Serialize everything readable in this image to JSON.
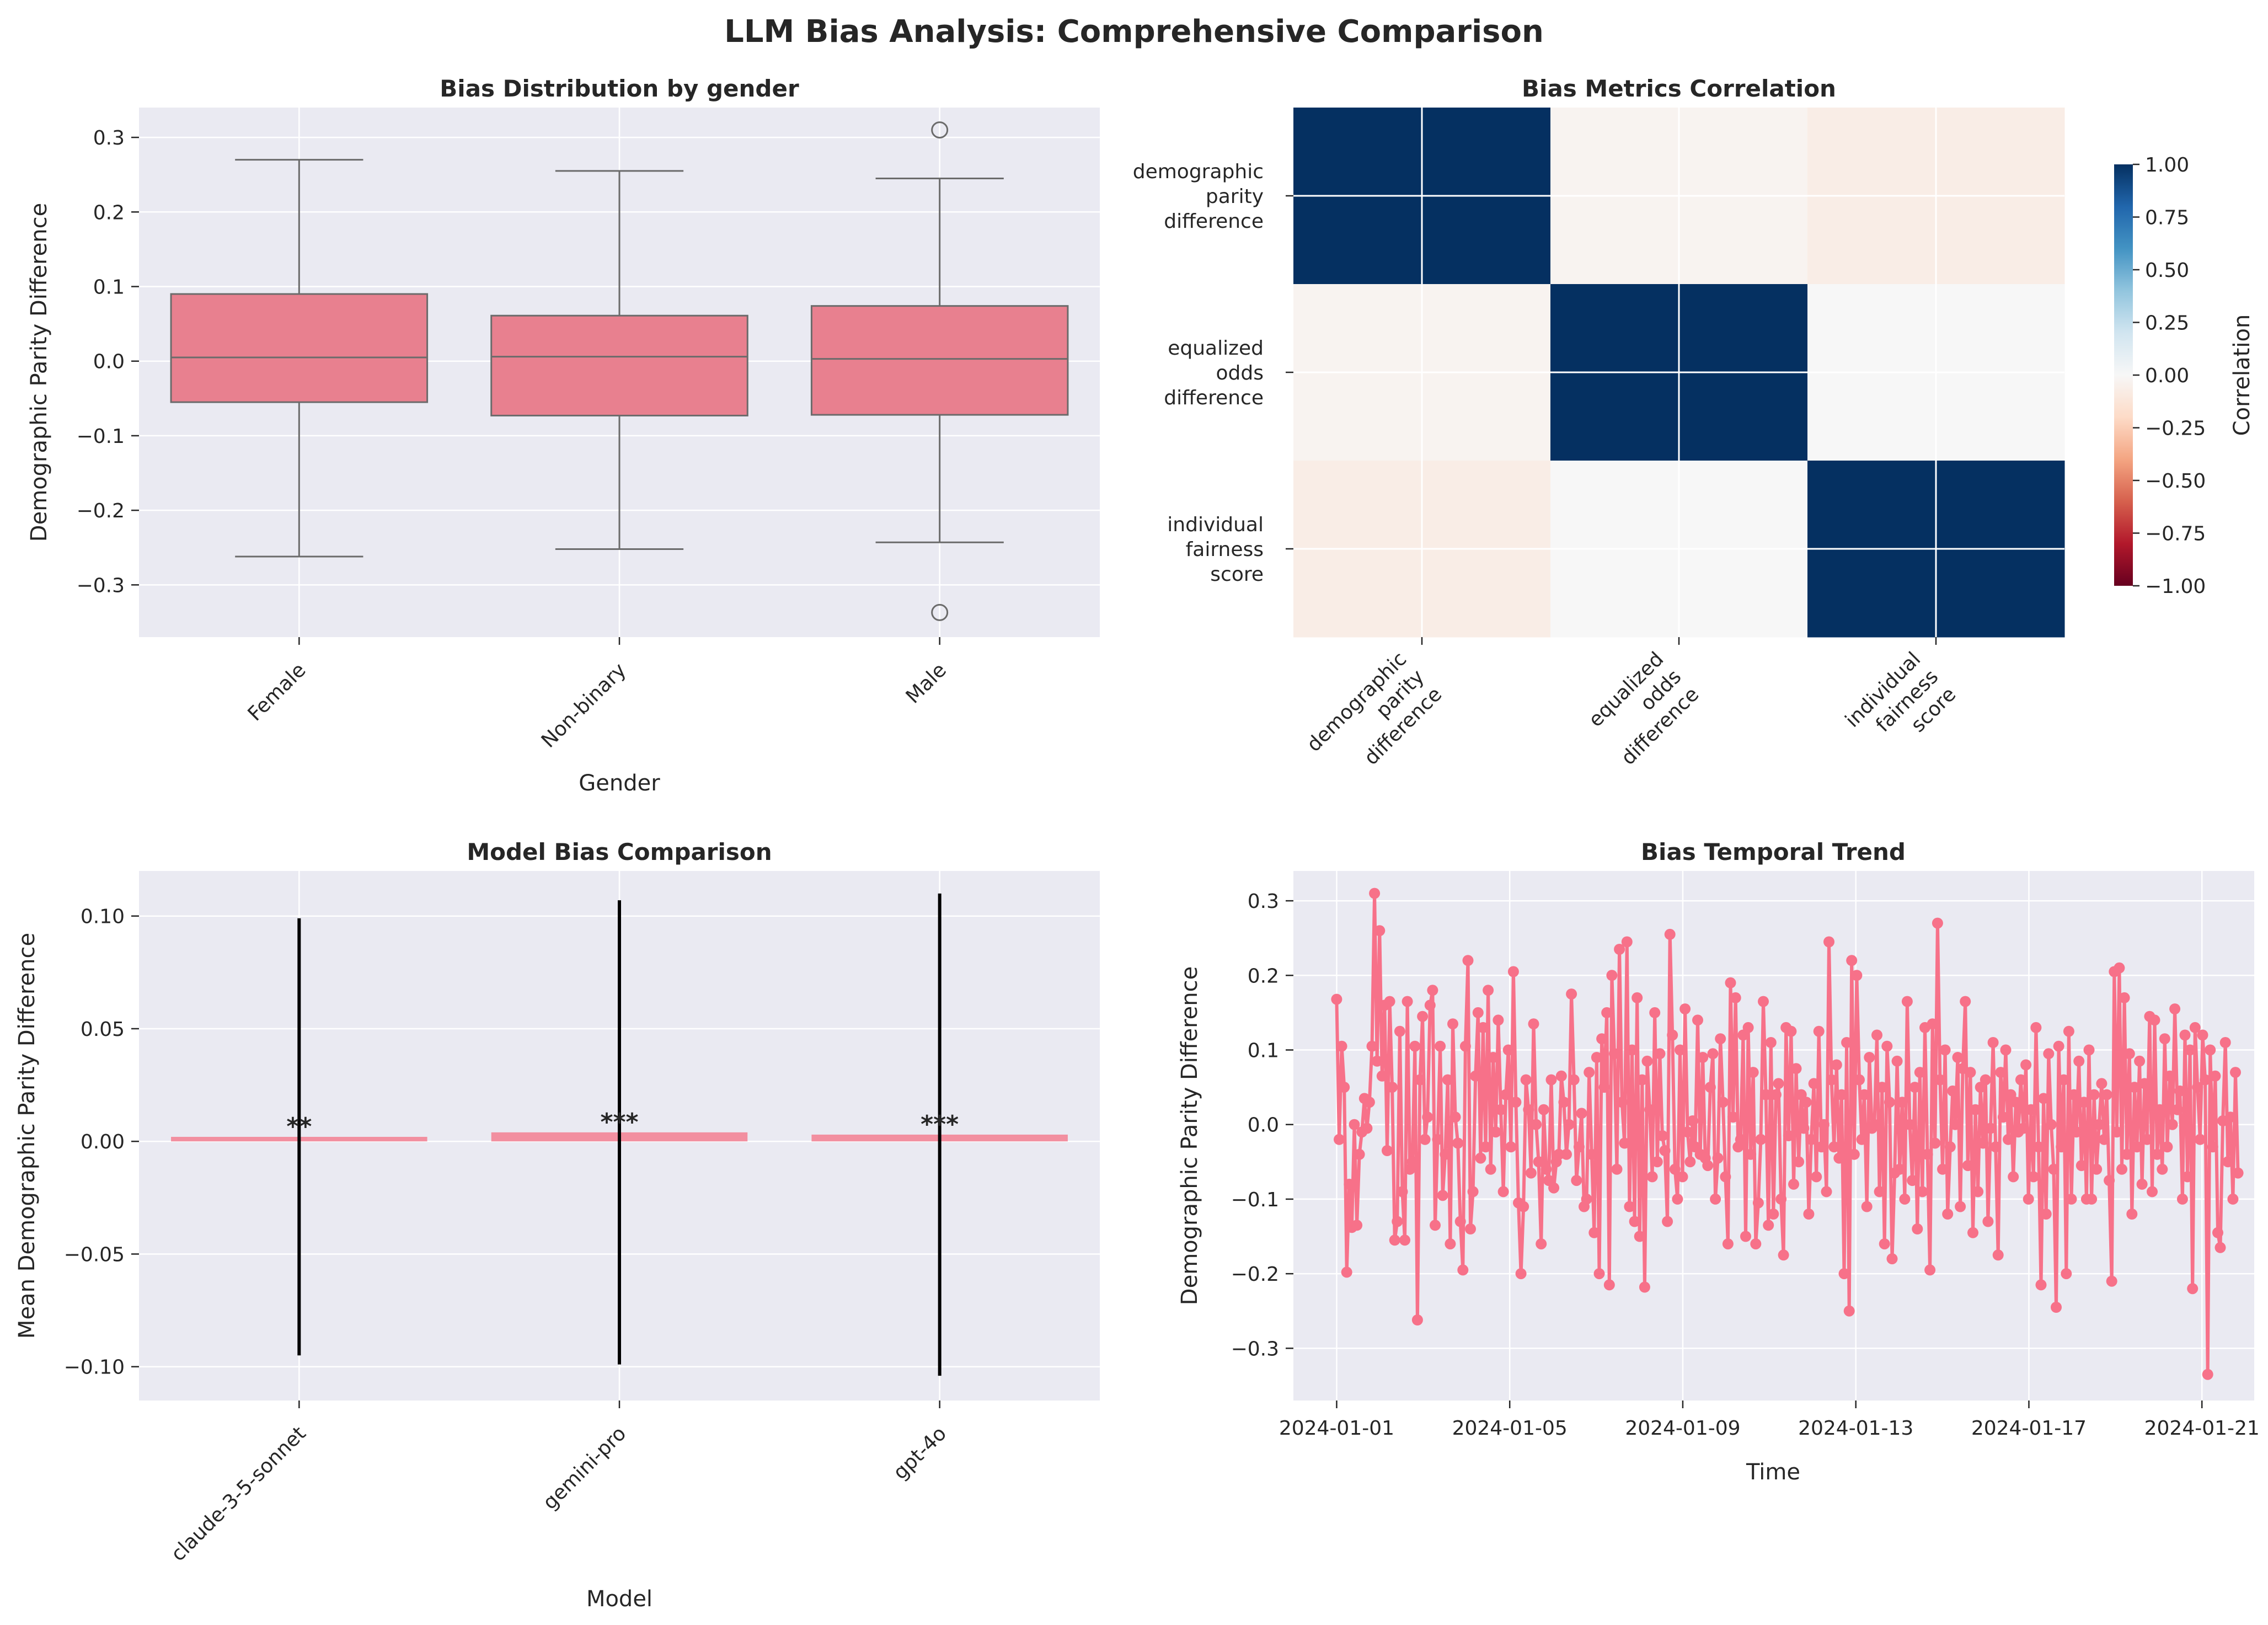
{
  "figure": {
    "title": "LLM Bias Analysis: Comprehensive Comparison"
  },
  "chart_data": [
    {
      "type": "box",
      "title": "Bias Distribution by gender",
      "xlabel": "Gender",
      "ylabel": "Demographic Parity Difference",
      "ylim": [
        -0.37,
        0.34
      ],
      "yticks": [
        -0.3,
        -0.2,
        -0.1,
        0.0,
        0.1,
        0.2,
        0.3
      ],
      "ytick_labels": [
        "−0.3",
        "−0.2",
        "−0.1",
        "0.0",
        "0.1",
        "0.2",
        "0.3"
      ],
      "categories": [
        "Female",
        "Non-binary",
        "Male"
      ],
      "boxes": [
        {
          "whislo": -0.262,
          "q1": -0.055,
          "med": 0.005,
          "q3": 0.09,
          "whishi": 0.27,
          "fliers": []
        },
        {
          "whislo": -0.252,
          "q1": -0.073,
          "med": 0.006,
          "q3": 0.061,
          "whishi": 0.255,
          "fliers": []
        },
        {
          "whislo": -0.243,
          "q1": -0.072,
          "med": 0.003,
          "q3": 0.074,
          "whishi": 0.245,
          "fliers": [
            0.31,
            -0.337
          ]
        }
      ],
      "color": "#e8808f",
      "grid": true
    },
    {
      "type": "heatmap",
      "title": "Bias Metrics Correlation",
      "row_labels": [
        [
          "demographic",
          "parity",
          "difference"
        ],
        [
          "equalized",
          "odds",
          "difference"
        ],
        [
          "individual",
          "fairness",
          "score"
        ]
      ],
      "col_labels": [
        [
          "demographic",
          "parity",
          "difference"
        ],
        [
          "equalized",
          "odds",
          "difference"
        ],
        [
          "individual",
          "fairness",
          "score"
        ]
      ],
      "values": [
        [
          1.0,
          -0.03,
          -0.07
        ],
        [
          -0.03,
          1.0,
          0.0
        ],
        [
          -0.07,
          0.0,
          1.0
        ]
      ],
      "colorbar_label": "Correlation",
      "vmin": -1.0,
      "vmax": 1.0,
      "colorbar_ticks": [
        1.0,
        0.75,
        0.5,
        0.25,
        0.0,
        -0.25,
        -0.5,
        -0.75,
        -1.0
      ],
      "colorbar_tick_labels": [
        "1.00",
        "0.75",
        "0.50",
        "0.25",
        "0.00",
        "−0.25",
        "−0.50",
        "−0.75",
        "−1.00"
      ],
      "colormap": [
        "#67001f",
        "#b2182b",
        "#d6604d",
        "#f4a582",
        "#fddbc7",
        "#f7f7f7",
        "#d1e5f0",
        "#92c5de",
        "#4393c3",
        "#2166ac",
        "#053061"
      ]
    },
    {
      "type": "bar",
      "title": "Model Bias Comparison",
      "xlabel": "Model",
      "ylabel": "Mean Demographic Parity Difference",
      "ylim": [
        -0.115,
        0.12
      ],
      "yticks": [
        -0.1,
        -0.05,
        0.0,
        0.05,
        0.1
      ],
      "ytick_labels": [
        "−0.10",
        "−0.05",
        "0.00",
        "0.05",
        "0.10"
      ],
      "categories": [
        "claude-3-5-sonnet",
        "gemini-pro",
        "gpt-4o"
      ],
      "values": [
        0.002,
        0.004,
        0.003
      ],
      "error": [
        0.097,
        0.103,
        0.107
      ],
      "significance": [
        "**",
        "***",
        "***"
      ],
      "color": "#f28fa0",
      "grid": true
    },
    {
      "type": "line",
      "title": "Bias Temporal Trend",
      "xlabel": "Time",
      "ylabel": "Demographic Parity Difference",
      "ylim": [
        -0.37,
        0.34
      ],
      "yticks": [
        -0.3,
        -0.2,
        -0.1,
        0.0,
        0.1,
        0.2,
        0.3
      ],
      "ytick_labels": [
        "−0.3",
        "−0.2",
        "−0.1",
        "0.0",
        "0.1",
        "0.2",
        "0.3"
      ],
      "xlim": [
        "2023-12-31T00:00",
        "2024-01-22T05:00"
      ],
      "xtick_labels": [
        "2024-01-01",
        "2024-01-05",
        "2024-01-09",
        "2024-01-13",
        "2024-01-17",
        "2024-01-21"
      ],
      "x_start": "2024-01-01T00:00",
      "x_end": "2024-01-21T20:00",
      "y": [
        0.168,
        -0.02,
        0.105,
        0.05,
        -0.198,
        -0.08,
        -0.138,
        0.0,
        -0.135,
        -0.04,
        -0.01,
        0.035,
        -0.005,
        0.03,
        0.105,
        0.31,
        0.085,
        0.26,
        0.065,
        0.16,
        -0.035,
        0.165,
        0.05,
        -0.155,
        -0.13,
        0.125,
        -0.09,
        -0.155,
        0.165,
        -0.06,
        -0.05,
        0.105,
        -0.262,
        0.06,
        0.145,
        -0.02,
        0.01,
        0.16,
        0.18,
        -0.135,
        -0.02,
        0.105,
        -0.095,
        -0.04,
        0.06,
        -0.16,
        0.135,
        0.01,
        -0.025,
        -0.13,
        -0.195,
        0.105,
        0.22,
        -0.14,
        -0.09,
        0.065,
        0.15,
        -0.045,
        0.13,
        -0.03,
        0.18,
        -0.06,
        0.09,
        -0.01,
        0.14,
        0.02,
        -0.09,
        0.04,
        0.1,
        -0.03,
        0.205,
        0.03,
        -0.105,
        -0.2,
        -0.11,
        0.06,
        0.02,
        -0.065,
        0.135,
        0.0,
        -0.05,
        -0.16,
        0.02,
        -0.06,
        -0.075,
        0.06,
        -0.085,
        -0.05,
        -0.04,
        0.065,
        0.03,
        -0.04,
        0.0,
        0.175,
        0.06,
        -0.075,
        -0.03,
        0.015,
        -0.11,
        -0.1,
        0.07,
        -0.04,
        -0.145,
        0.09,
        -0.2,
        0.115,
        0.05,
        0.15,
        -0.215,
        0.2,
        0.095,
        -0.06,
        0.235,
        0.03,
        -0.025,
        0.245,
        -0.11,
        0.1,
        -0.13,
        0.17,
        -0.15,
        0.06,
        -0.218,
        0.085,
        0.02,
        -0.07,
        0.15,
        -0.05,
        0.095,
        -0.015,
        -0.035,
        -0.13,
        0.255,
        0.12,
        -0.06,
        -0.1,
        0.1,
        -0.07,
        0.155,
        -0.01,
        -0.05,
        0.005,
        -0.03,
        0.14,
        -0.04,
        0.09,
        -0.045,
        -0.055,
        0.05,
        0.095,
        -0.1,
        -0.045,
        0.115,
        0.03,
        -0.07,
        -0.16,
        0.19,
        0.01,
        0.17,
        -0.03,
        -0.02,
        0.12,
        -0.15,
        0.13,
        -0.04,
        0.07,
        -0.16,
        -0.105,
        -0.02,
        0.165,
        0.04,
        -0.135,
        0.11,
        -0.12,
        0.04,
        0.055,
        -0.1,
        -0.175,
        0.13,
        -0.015,
        0.125,
        -0.08,
        0.075,
        -0.05,
        0.04,
        -0.005,
        0.03,
        -0.12,
        -0.02,
        0.055,
        -0.07,
        0.125,
        -0.03,
        0.0,
        -0.09,
        0.245,
        0.06,
        -0.03,
        0.08,
        -0.045,
        0.04,
        -0.2,
        0.11,
        -0.25,
        0.22,
        -0.04,
        0.2,
        0.06,
        -0.02,
        0.04,
        -0.11,
        0.09,
        -0.005,
        0.0,
        0.12,
        -0.09,
        0.05,
        -0.16,
        0.105,
        0.03,
        -0.18,
        -0.065,
        0.085,
        -0.06,
        0.03,
        -0.1,
        0.165,
        0.0,
        -0.075,
        0.05,
        -0.14,
        0.07,
        -0.09,
        0.13,
        -0.04,
        -0.195,
        0.135,
        -0.025,
        0.27,
        0.06,
        -0.06,
        0.1,
        -0.12,
        -0.03,
        0.045,
        0.0,
        0.09,
        -0.11,
        0.075,
        0.165,
        -0.055,
        0.07,
        -0.145,
        0.02,
        -0.09,
        0.05,
        -0.025,
        0.06,
        -0.13,
        -0.005,
        0.11,
        -0.03,
        -0.175,
        0.07,
        0.01,
        0.1,
        -0.02,
        0.04,
        -0.07,
        0.03,
        -0.01,
        0.06,
        -0.005,
        0.08,
        -0.1,
        0.02,
        -0.07,
        0.13,
        -0.03,
        -0.215,
        0.035,
        -0.12,
        0.095,
        0.0,
        -0.06,
        -0.245,
        0.105,
        -0.03,
        0.06,
        -0.2,
        0.125,
        -0.1,
        0.04,
        -0.01,
        0.085,
        -0.055,
        0.03,
        -0.1,
        0.1,
        -0.1,
        0.04,
        -0.06,
        0.0,
        0.055,
        -0.02,
        0.04,
        -0.075,
        -0.21,
        0.205,
        -0.01,
        0.21,
        -0.06,
        0.17,
        -0.04,
        0.095,
        -0.12,
        0.05,
        -0.03,
        0.085,
        -0.08,
        0.055,
        -0.02,
        0.145,
        -0.09,
        0.14,
        -0.04,
        0.02,
        -0.06,
        0.115,
        -0.03,
        0.065,
        0.0,
        0.155,
        0.02,
        0.045,
        -0.1,
        0.12,
        -0.07,
        0.1,
        -0.22,
        0.13,
        0.05,
        -0.02,
        0.12,
        0.06,
        -0.335,
        0.1,
        -0.03,
        0.065,
        -0.145,
        -0.165,
        0.005,
        0.11,
        -0.05,
        0.01,
        -0.1,
        0.07,
        -0.065
      ]
    }
  ]
}
